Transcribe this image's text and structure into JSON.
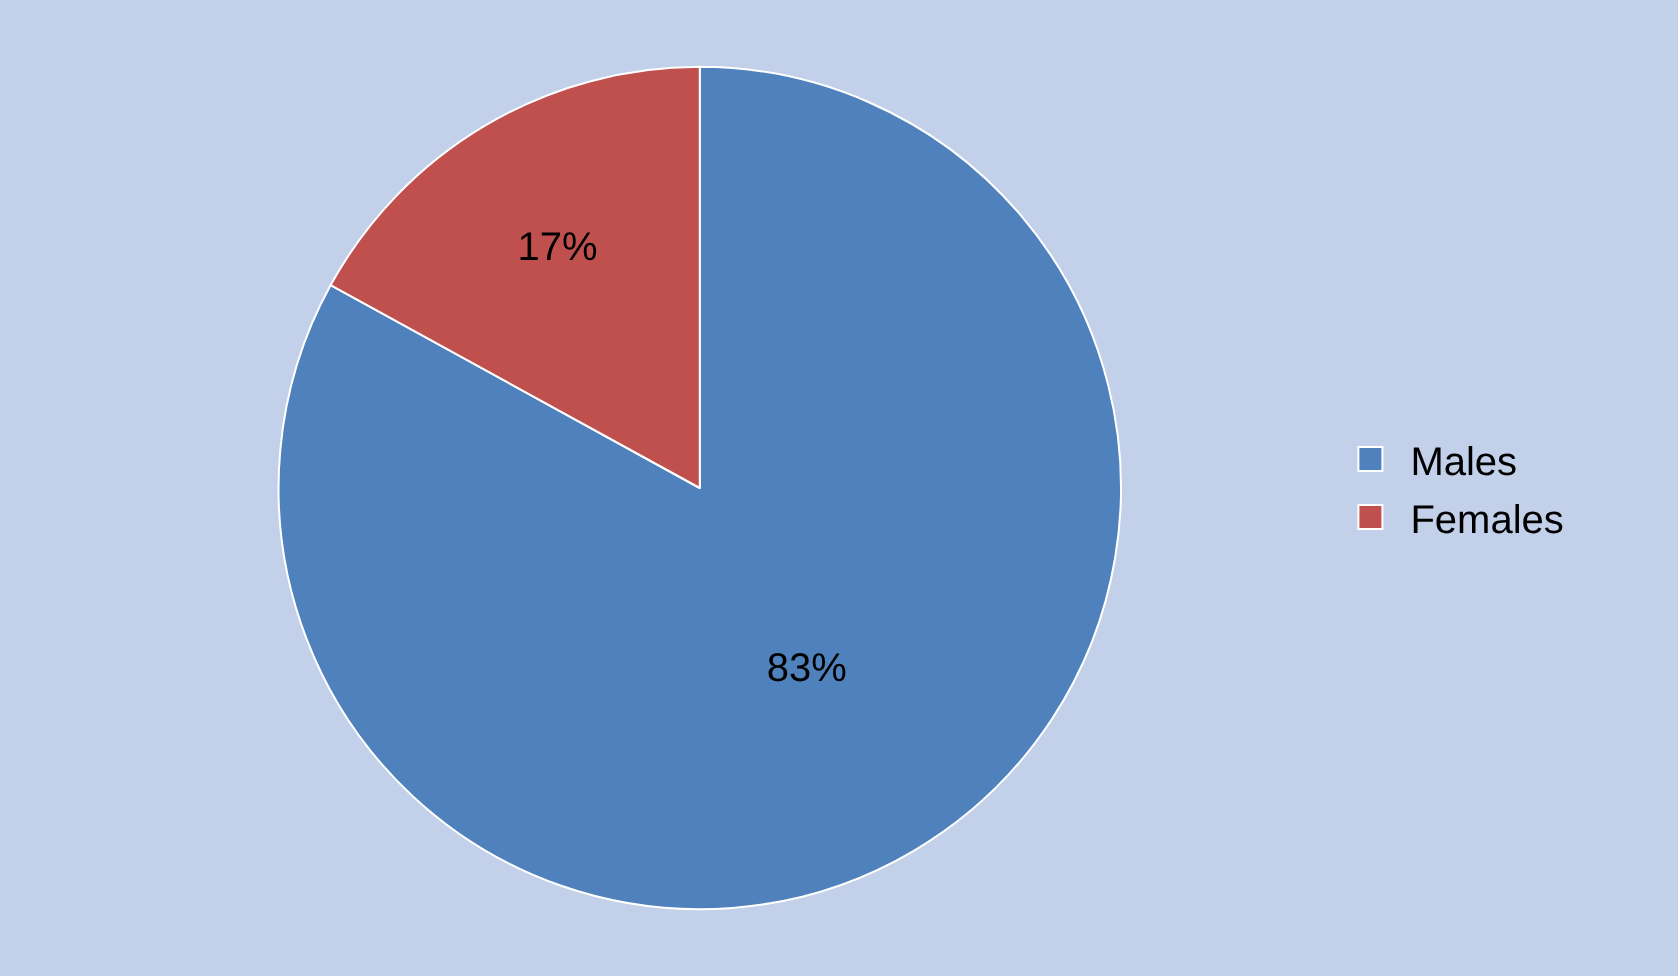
{
  "chart_data": {
    "type": "pie",
    "categories": [
      "Males",
      "Females"
    ],
    "values": [
      83,
      17
    ],
    "colors": [
      "#4f81bd",
      "#c0504d"
    ],
    "value_labels": [
      "83%",
      "17%"
    ],
    "legend": "right"
  }
}
